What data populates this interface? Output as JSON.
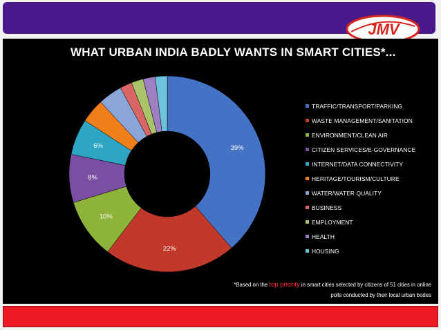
{
  "slide": {
    "title": "WHAT URBAN INDIA BADLY WANTS IN SMART CITIES*...",
    "logo_text": "JMV",
    "footnote": {
      "prefix": "*Based on the ",
      "highlight": "top priority",
      "suffix_line1": " in smart cities selected by citizens of 51 cities in online",
      "line2": "polls conducted by their local urban bodes"
    }
  },
  "colors": {
    "header_bar": "#4a1a8c",
    "footer_bar": "#ec1b24",
    "chart_background": "#000000",
    "highlight_text": "#ff2b2b"
  },
  "chart_data": {
    "type": "pie",
    "style": "donut",
    "title": "WHAT URBAN INDIA BADLY WANTS IN SMART CITIES*...",
    "legend_position": "right",
    "categories": [
      "TRAFFIC/TRANSPORT/PARKING",
      "WASTE MANAGEMENT/SANITATION",
      "ENVIRONMENT/CLEAN AIR",
      "CITIZEN SERVICES/E-GOVERNANCE",
      "INTERNET/DATA CONNECTIVITY",
      "HERITAGE/TOURISM/CULTURE",
      "WATER/WATER QUALITY",
      "BUSINESS",
      "EMPLOYMENT",
      "HEALTH",
      "HOUSING"
    ],
    "values": [
      39,
      22,
      10,
      8,
      6,
      4,
      4,
      2,
      2,
      2,
      2
    ],
    "data_labels": [
      "39%",
      "22%",
      "10%",
      "8%",
      "6%",
      "",
      "",
      "",
      "",
      "",
      ""
    ],
    "colors": [
      "#4472c4",
      "#c0392b",
      "#8db33a",
      "#7a4fa3",
      "#2ea5c4",
      "#f07f1b",
      "#8aa5d8",
      "#d96664",
      "#a9c46a",
      "#9d7fc2",
      "#6fc2dc"
    ]
  }
}
